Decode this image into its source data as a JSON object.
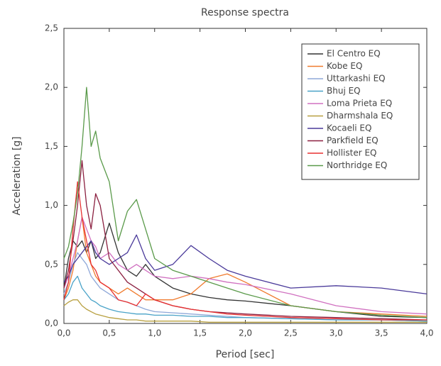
{
  "chart_data": {
    "type": "line",
    "title": "Response spectra",
    "x_label": "Period [sec]",
    "y_label": "Acceleration [g]",
    "x": [
      0,
      0.05,
      0.1,
      0.15,
      0.2,
      0.25,
      0.3,
      0.35,
      0.4,
      0.5,
      0.6,
      0.7,
      0.8,
      0.9,
      1.0,
      1.2,
      1.4,
      1.6,
      1.8,
      2.0,
      2.5,
      3.0,
      3.5,
      4.0
    ],
    "xlim": [
      0,
      4
    ],
    "ylim": [
      0,
      2.5
    ],
    "xticks": [
      {
        "value": 0,
        "label": "0,0"
      },
      {
        "value": 0.5,
        "label": "0,5"
      },
      {
        "value": 1,
        "label": "1,0"
      },
      {
        "value": 1.5,
        "label": "1,5"
      },
      {
        "value": 2,
        "label": "2,0"
      },
      {
        "value": 2.5,
        "label": "2,5"
      },
      {
        "value": 3,
        "label": "3,0"
      },
      {
        "value": 3.5,
        "label": "3,5"
      },
      {
        "value": 4,
        "label": "4,0"
      }
    ],
    "yticks": [
      {
        "value": 0,
        "label": "0,0"
      },
      {
        "value": 0.5,
        "label": "0,5"
      },
      {
        "value": 1,
        "label": "1,0"
      },
      {
        "value": 1.5,
        "label": "1,5"
      },
      {
        "value": 2,
        "label": "2,0"
      },
      {
        "value": 2.5,
        "label": "2,5"
      }
    ],
    "grid": false,
    "legend": "top-right",
    "series": [
      {
        "name": "El Centro EQ",
        "color": "#333333",
        "values": [
          0.3,
          0.55,
          0.7,
          0.65,
          0.7,
          0.6,
          0.7,
          0.55,
          0.6,
          0.85,
          0.6,
          0.45,
          0.4,
          0.5,
          0.4,
          0.3,
          0.25,
          0.22,
          0.2,
          0.19,
          0.15,
          0.1,
          0.06,
          0.05
        ]
      },
      {
        "name": "Kobe EQ",
        "color": "#f07b2e",
        "values": [
          0.2,
          0.3,
          0.45,
          0.7,
          0.9,
          0.6,
          0.5,
          0.4,
          0.35,
          0.3,
          0.25,
          0.3,
          0.25,
          0.2,
          0.2,
          0.2,
          0.25,
          0.38,
          0.42,
          0.35,
          0.15,
          0.1,
          0.08,
          0.06
        ]
      },
      {
        "name": "Uttarkashi EQ",
        "color": "#8fa8d8",
        "values": [
          0.25,
          0.35,
          0.5,
          0.6,
          0.55,
          0.5,
          0.4,
          0.35,
          0.3,
          0.25,
          0.2,
          0.18,
          0.15,
          0.12,
          0.1,
          0.09,
          0.08,
          0.07,
          0.06,
          0.05,
          0.04,
          0.03,
          0.03,
          0.02
        ]
      },
      {
        "name": "Bhuj EQ",
        "color": "#4aa3c8",
        "values": [
          0.2,
          0.25,
          0.35,
          0.4,
          0.3,
          0.25,
          0.2,
          0.18,
          0.15,
          0.12,
          0.1,
          0.09,
          0.08,
          0.08,
          0.07,
          0.07,
          0.06,
          0.06,
          0.05,
          0.05,
          0.04,
          0.03,
          0.03,
          0.02
        ]
      },
      {
        "name": "Loma Prieta EQ",
        "color": "#d070c0",
        "values": [
          0.3,
          0.4,
          0.55,
          0.7,
          0.9,
          0.8,
          0.7,
          0.65,
          0.55,
          0.6,
          0.5,
          0.45,
          0.5,
          0.45,
          0.4,
          0.38,
          0.4,
          0.38,
          0.35,
          0.33,
          0.25,
          0.15,
          0.1,
          0.08
        ]
      },
      {
        "name": "Dharmshala EQ",
        "color": "#b8a040",
        "values": [
          0.15,
          0.18,
          0.2,
          0.2,
          0.15,
          0.12,
          0.1,
          0.08,
          0.07,
          0.05,
          0.04,
          0.03,
          0.03,
          0.02,
          0.02,
          0.02,
          0.02,
          0.01,
          0.01,
          0.01,
          0.01,
          0.01,
          0.01,
          0.01
        ]
      },
      {
        "name": "Kocaeli EQ",
        "color": "#4a3a9a",
        "values": [
          0.35,
          0.4,
          0.5,
          0.55,
          0.6,
          0.65,
          0.7,
          0.6,
          0.55,
          0.5,
          0.55,
          0.6,
          0.75,
          0.55,
          0.45,
          0.5,
          0.66,
          0.55,
          0.45,
          0.4,
          0.3,
          0.32,
          0.3,
          0.25
        ]
      },
      {
        "name": "Parkfield EQ",
        "color": "#8b2040",
        "values": [
          0.3,
          0.45,
          0.7,
          1.0,
          1.38,
          1.0,
          0.8,
          1.1,
          1.0,
          0.55,
          0.45,
          0.35,
          0.3,
          0.25,
          0.2,
          0.15,
          0.12,
          0.1,
          0.09,
          0.08,
          0.06,
          0.05,
          0.04,
          0.03
        ]
      },
      {
        "name": "Hollister EQ",
        "color": "#e83030",
        "values": [
          0.2,
          0.35,
          0.8,
          1.2,
          0.9,
          0.7,
          0.5,
          0.45,
          0.35,
          0.3,
          0.2,
          0.18,
          0.15,
          0.25,
          0.2,
          0.15,
          0.12,
          0.1,
          0.08,
          0.07,
          0.05,
          0.04,
          0.03,
          0.03
        ]
      },
      {
        "name": "Northridge EQ",
        "color": "#5a9a4a",
        "values": [
          0.55,
          0.65,
          0.85,
          1.1,
          1.5,
          2.0,
          1.5,
          1.63,
          1.4,
          1.2,
          0.7,
          0.95,
          1.05,
          0.8,
          0.55,
          0.45,
          0.4,
          0.35,
          0.3,
          0.25,
          0.15,
          0.1,
          0.07,
          0.05
        ]
      }
    ]
  }
}
